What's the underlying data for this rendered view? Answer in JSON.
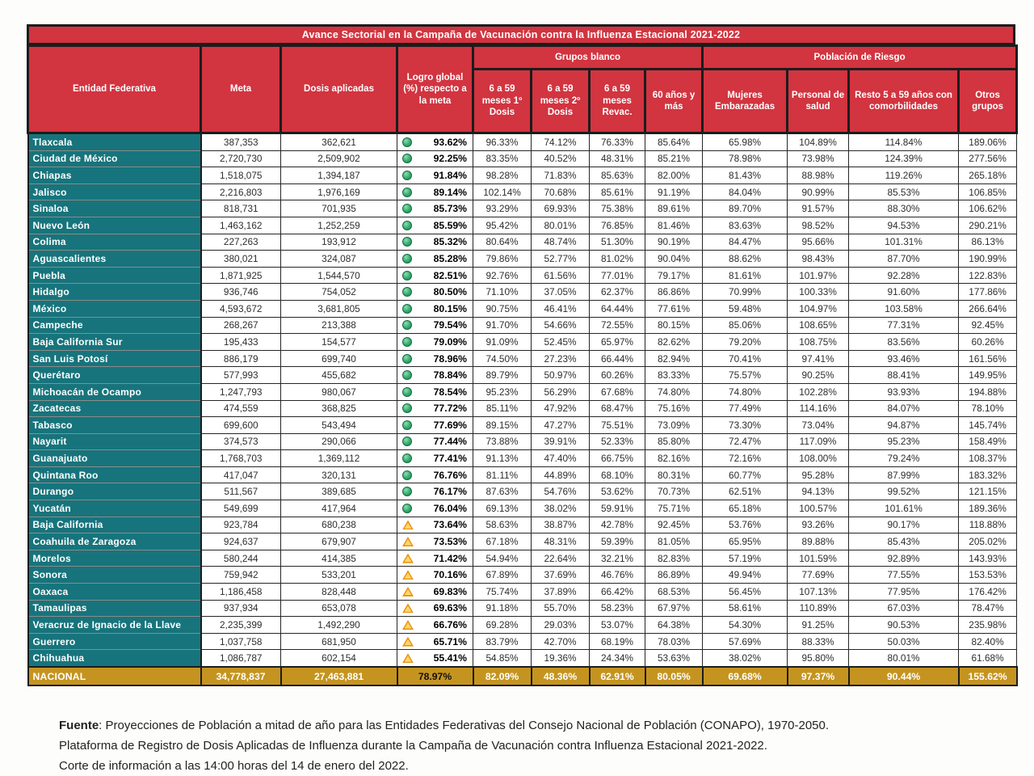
{
  "title": "Avance Sectorial en la Campaña de Vacunación contra la Influenza Estacional 2021-2022",
  "table": {
    "headers": {
      "entity": "Entidad Federativa",
      "meta": "Meta",
      "dosis": "Dosis aplicadas",
      "logro": "Logro global (%) respecto a la meta",
      "group_blanco": "Grupos blanco",
      "group_riesgo": "Población de Riesgo",
      "sub": [
        "6 a 59 meses 1º Dosis",
        "6 a 59 meses 2º Dosis",
        "6 a 59 meses Revac.",
        "60 años y más",
        "Mujeres Embarazadas",
        "Personal de salud",
        "Resto 5 a 59 años con comorbilidades",
        "Otros grupos"
      ]
    },
    "status_legend": {
      "green": "green-circle",
      "yellow": "warning-triangle"
    },
    "rows": [
      {
        "entity": "Tlaxcala",
        "meta": "387,353",
        "dosis": "362,621",
        "logro": "93.62%",
        "status": "green",
        "values": [
          "96.33%",
          "74.12%",
          "76.33%",
          "85.64%",
          "65.98%",
          "104.89%",
          "114.84%",
          "189.06%"
        ]
      },
      {
        "entity": "Ciudad de México",
        "meta": "2,720,730",
        "dosis": "2,509,902",
        "logro": "92.25%",
        "status": "green",
        "values": [
          "83.35%",
          "40.52%",
          "48.31%",
          "85.21%",
          "78.98%",
          "73.98%",
          "124.39%",
          "277.56%"
        ]
      },
      {
        "entity": "Chiapas",
        "meta": "1,518,075",
        "dosis": "1,394,187",
        "logro": "91.84%",
        "status": "green",
        "values": [
          "98.28%",
          "71.83%",
          "85.63%",
          "82.00%",
          "81.43%",
          "88.98%",
          "119.26%",
          "265.18%"
        ]
      },
      {
        "entity": "Jalisco",
        "meta": "2,216,803",
        "dosis": "1,976,169",
        "logro": "89.14%",
        "status": "green",
        "values": [
          "102.14%",
          "70.68%",
          "85.61%",
          "91.19%",
          "84.04%",
          "90.99%",
          "85.53%",
          "106.85%"
        ]
      },
      {
        "entity": "Sinaloa",
        "meta": "818,731",
        "dosis": "701,935",
        "logro": "85.73%",
        "status": "green",
        "values": [
          "93.29%",
          "69.93%",
          "75.38%",
          "89.61%",
          "89.70%",
          "91.57%",
          "88.30%",
          "106.62%"
        ]
      },
      {
        "entity": "Nuevo León",
        "meta": "1,463,162",
        "dosis": "1,252,259",
        "logro": "85.59%",
        "status": "green",
        "values": [
          "95.42%",
          "80.01%",
          "76.85%",
          "81.46%",
          "83.63%",
          "98.52%",
          "94.53%",
          "290.21%"
        ]
      },
      {
        "entity": "Colima",
        "meta": "227,263",
        "dosis": "193,912",
        "logro": "85.32%",
        "status": "green",
        "values": [
          "80.64%",
          "48.74%",
          "51.30%",
          "90.19%",
          "84.47%",
          "95.66%",
          "101.31%",
          "86.13%"
        ]
      },
      {
        "entity": "Aguascalientes",
        "meta": "380,021",
        "dosis": "324,087",
        "logro": "85.28%",
        "status": "green",
        "values": [
          "79.86%",
          "52.77%",
          "81.02%",
          "90.04%",
          "88.62%",
          "98.43%",
          "87.70%",
          "190.99%"
        ]
      },
      {
        "entity": "Puebla",
        "meta": "1,871,925",
        "dosis": "1,544,570",
        "logro": "82.51%",
        "status": "green",
        "values": [
          "92.76%",
          "61.56%",
          "77.01%",
          "79.17%",
          "81.61%",
          "101.97%",
          "92.28%",
          "122.83%"
        ]
      },
      {
        "entity": "Hidalgo",
        "meta": "936,746",
        "dosis": "754,052",
        "logro": "80.50%",
        "status": "green",
        "values": [
          "71.10%",
          "37.05%",
          "62.37%",
          "86.86%",
          "70.99%",
          "100.33%",
          "91.60%",
          "177.86%"
        ]
      },
      {
        "entity": "México",
        "meta": "4,593,672",
        "dosis": "3,681,805",
        "logro": "80.15%",
        "status": "green",
        "values": [
          "90.75%",
          "46.41%",
          "64.44%",
          "77.61%",
          "59.48%",
          "104.97%",
          "103.58%",
          "266.64%"
        ]
      },
      {
        "entity": "Campeche",
        "meta": "268,267",
        "dosis": "213,388",
        "logro": "79.54%",
        "status": "green",
        "values": [
          "91.70%",
          "54.66%",
          "72.55%",
          "80.15%",
          "85.06%",
          "108.65%",
          "77.31%",
          "92.45%"
        ]
      },
      {
        "entity": "Baja California Sur",
        "meta": "195,433",
        "dosis": "154,577",
        "logro": "79.09%",
        "status": "green",
        "values": [
          "91.09%",
          "52.45%",
          "65.97%",
          "82.62%",
          "79.20%",
          "108.75%",
          "83.56%",
          "60.26%"
        ]
      },
      {
        "entity": "San Luis Potosí",
        "meta": "886,179",
        "dosis": "699,740",
        "logro": "78.96%",
        "status": "green",
        "values": [
          "74.50%",
          "27.23%",
          "66.44%",
          "82.94%",
          "70.41%",
          "97.41%",
          "93.46%",
          "161.56%"
        ]
      },
      {
        "entity": "Querétaro",
        "meta": "577,993",
        "dosis": "455,682",
        "logro": "78.84%",
        "status": "green",
        "values": [
          "89.79%",
          "50.97%",
          "60.26%",
          "83.33%",
          "75.57%",
          "90.25%",
          "88.41%",
          "149.95%"
        ]
      },
      {
        "entity": "Michoacán de Ocampo",
        "meta": "1,247,793",
        "dosis": "980,067",
        "logro": "78.54%",
        "status": "green",
        "values": [
          "95.23%",
          "56.29%",
          "67.68%",
          "74.80%",
          "74.80%",
          "102.28%",
          "93.93%",
          "194.88%"
        ]
      },
      {
        "entity": "Zacatecas",
        "meta": "474,559",
        "dosis": "368,825",
        "logro": "77.72%",
        "status": "green",
        "values": [
          "85.11%",
          "47.92%",
          "68.47%",
          "75.16%",
          "77.49%",
          "114.16%",
          "84.07%",
          "78.10%"
        ]
      },
      {
        "entity": "Tabasco",
        "meta": "699,600",
        "dosis": "543,494",
        "logro": "77.69%",
        "status": "green",
        "values": [
          "89.15%",
          "47.27%",
          "75.51%",
          "73.09%",
          "73.30%",
          "73.04%",
          "94.87%",
          "145.74%"
        ]
      },
      {
        "entity": "Nayarit",
        "meta": "374,573",
        "dosis": "290,066",
        "logro": "77.44%",
        "status": "green",
        "values": [
          "73.88%",
          "39.91%",
          "52.33%",
          "85.80%",
          "72.47%",
          "117.09%",
          "95.23%",
          "158.49%"
        ]
      },
      {
        "entity": "Guanajuato",
        "meta": "1,768,703",
        "dosis": "1,369,112",
        "logro": "77.41%",
        "status": "green",
        "values": [
          "91.13%",
          "47.40%",
          "66.75%",
          "82.16%",
          "72.16%",
          "108.00%",
          "79.24%",
          "108.37%"
        ]
      },
      {
        "entity": "Quintana Roo",
        "meta": "417,047",
        "dosis": "320,131",
        "logro": "76.76%",
        "status": "green",
        "values": [
          "81.11%",
          "44.89%",
          "68.10%",
          "80.31%",
          "60.77%",
          "95.28%",
          "87.99%",
          "183.32%"
        ]
      },
      {
        "entity": "Durango",
        "meta": "511,567",
        "dosis": "389,685",
        "logro": "76.17%",
        "status": "green",
        "values": [
          "87.63%",
          "54.76%",
          "53.62%",
          "70.73%",
          "62.51%",
          "94.13%",
          "99.52%",
          "121.15%"
        ]
      },
      {
        "entity": "Yucatán",
        "meta": "549,699",
        "dosis": "417,964",
        "logro": "76.04%",
        "status": "green",
        "values": [
          "69.13%",
          "38.02%",
          "59.91%",
          "75.71%",
          "65.18%",
          "100.57%",
          "101.61%",
          "189.36%"
        ]
      },
      {
        "entity": "Baja California",
        "meta": "923,784",
        "dosis": "680,238",
        "logro": "73.64%",
        "status": "yellow",
        "values": [
          "58.63%",
          "38.87%",
          "42.78%",
          "92.45%",
          "53.76%",
          "93.26%",
          "90.17%",
          "118.88%"
        ]
      },
      {
        "entity": "Coahuila de Zaragoza",
        "meta": "924,637",
        "dosis": "679,907",
        "logro": "73.53%",
        "status": "yellow",
        "values": [
          "67.18%",
          "48.31%",
          "59.39%",
          "81.05%",
          "65.95%",
          "89.88%",
          "85.43%",
          "205.02%"
        ]
      },
      {
        "entity": "Morelos",
        "meta": "580,244",
        "dosis": "414,385",
        "logro": "71.42%",
        "status": "yellow",
        "values": [
          "54.94%",
          "22.64%",
          "32.21%",
          "82.83%",
          "57.19%",
          "101.59%",
          "92.89%",
          "143.93%"
        ]
      },
      {
        "entity": "Sonora",
        "meta": "759,942",
        "dosis": "533,201",
        "logro": "70.16%",
        "status": "yellow",
        "values": [
          "67.89%",
          "37.69%",
          "46.76%",
          "86.89%",
          "49.94%",
          "77.69%",
          "77.55%",
          "153.53%"
        ]
      },
      {
        "entity": "Oaxaca",
        "meta": "1,186,458",
        "dosis": "828,448",
        "logro": "69.83%",
        "status": "yellow",
        "values": [
          "75.74%",
          "37.89%",
          "66.42%",
          "68.53%",
          "56.45%",
          "107.13%",
          "77.95%",
          "176.42%"
        ]
      },
      {
        "entity": "Tamaulipas",
        "meta": "937,934",
        "dosis": "653,078",
        "logro": "69.63%",
        "status": "yellow",
        "values": [
          "91.18%",
          "55.70%",
          "58.23%",
          "67.97%",
          "58.61%",
          "110.89%",
          "67.03%",
          "78.47%"
        ]
      },
      {
        "entity": "Veracruz de Ignacio de la Llave",
        "meta": "2,235,399",
        "dosis": "1,492,290",
        "logro": "66.76%",
        "status": "yellow",
        "values": [
          "69.28%",
          "29.03%",
          "53.07%",
          "64.38%",
          "54.30%",
          "91.25%",
          "90.53%",
          "235.98%"
        ]
      },
      {
        "entity": "Guerrero",
        "meta": "1,037,758",
        "dosis": "681,950",
        "logro": "65.71%",
        "status": "yellow",
        "values": [
          "83.79%",
          "42.70%",
          "68.19%",
          "78.03%",
          "57.69%",
          "88.33%",
          "50.03%",
          "82.40%"
        ]
      },
      {
        "entity": "Chihuahua",
        "meta": "1,086,787",
        "dosis": "602,154",
        "logro": "55.41%",
        "status": "yellow",
        "values": [
          "54.85%",
          "19.36%",
          "24.34%",
          "53.63%",
          "38.02%",
          "95.80%",
          "80.01%",
          "61.68%"
        ]
      }
    ],
    "national": {
      "entity": "NACIONAL",
      "meta": "34,778,837",
      "dosis": "27,463,881",
      "logro": "78.97%",
      "status": "none",
      "values": [
        "82.09%",
        "48.36%",
        "62.91%",
        "80.05%",
        "69.68%",
        "97.37%",
        "90.44%",
        "155.62%"
      ]
    }
  },
  "colors": {
    "header_red": "#d23440",
    "entity_teal": "#17747c",
    "national_gold": "#c59420",
    "status_green": "#34ab6e",
    "status_yellow": "#e89312",
    "grid_black": "#1c1c1c"
  },
  "footer": {
    "fuente_label": "Fuente",
    "line1_rest": ": Proyecciones de Población a mitad de año para las Entidades Federativas del Consejo Nacional de Población (CONAPO), 1970-2050.",
    "line2": "Plataforma de Registro de Dosis Aplicadas de Influenza durante la Campaña de Vacunación contra Influenza Estacional 2021-2022.",
    "line3": "Corte de información a las 14:00 horas del 14 de enero del 2022."
  }
}
